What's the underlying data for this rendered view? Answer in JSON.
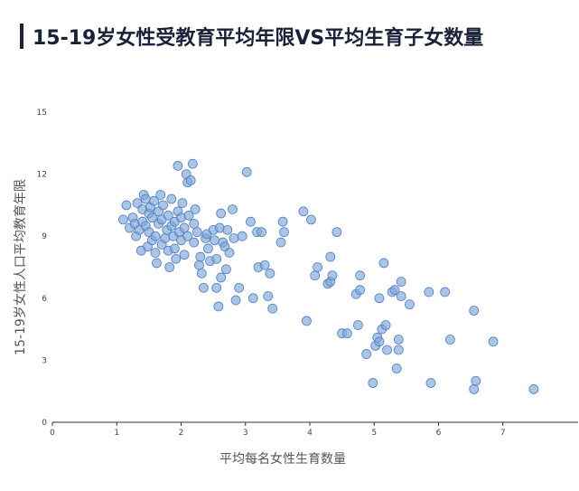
{
  "title": "15-19岁女性受教育平均年限VS平均生育子女数量",
  "chart_data": {
    "type": "scatter",
    "title": "15-19岁女性受教育平均年限VS平均生育子女数量",
    "xlabel": "平均每名女性生育数量",
    "ylabel": "15-19岁女性人口平均教育年限",
    "xlim": [
      0,
      8
    ],
    "ylim": [
      0,
      15
    ],
    "xticks": [
      0,
      1,
      2,
      3,
      4,
      5,
      6,
      7
    ],
    "yticks": [
      0,
      3,
      6,
      9,
      12,
      15
    ],
    "grid": false,
    "points": [
      [
        1.1,
        9.8
      ],
      [
        1.15,
        10.5
      ],
      [
        1.2,
        9.4
      ],
      [
        1.25,
        9.9
      ],
      [
        1.28,
        9.6
      ],
      [
        1.3,
        9.0
      ],
      [
        1.32,
        10.6
      ],
      [
        1.35,
        9.3
      ],
      [
        1.38,
        8.3
      ],
      [
        1.4,
        9.7
      ],
      [
        1.4,
        10.3
      ],
      [
        1.42,
        11.0
      ],
      [
        1.45,
        10.8
      ],
      [
        1.45,
        9.5
      ],
      [
        1.48,
        8.5
      ],
      [
        1.5,
        10.1
      ],
      [
        1.5,
        9.2
      ],
      [
        1.52,
        10.4
      ],
      [
        1.55,
        8.8
      ],
      [
        1.55,
        9.9
      ],
      [
        1.58,
        10.7
      ],
      [
        1.6,
        9.0
      ],
      [
        1.6,
        8.2
      ],
      [
        1.62,
        7.7
      ],
      [
        1.65,
        9.6
      ],
      [
        1.65,
        10.2
      ],
      [
        1.68,
        11.0
      ],
      [
        1.7,
        8.6
      ],
      [
        1.7,
        9.8
      ],
      [
        1.72,
        10.5
      ],
      [
        1.75,
        8.9
      ],
      [
        1.78,
        9.3
      ],
      [
        1.8,
        8.3
      ],
      [
        1.8,
        10.0
      ],
      [
        1.82,
        7.5
      ],
      [
        1.85,
        9.5
      ],
      [
        1.85,
        10.8
      ],
      [
        1.88,
        9.0
      ],
      [
        1.9,
        9.7
      ],
      [
        1.9,
        8.4
      ],
      [
        1.92,
        7.9
      ],
      [
        1.95,
        12.4
      ],
      [
        1.95,
        10.2
      ],
      [
        1.97,
        9.2
      ],
      [
        2.0,
        8.8
      ],
      [
        2.0,
        9.9
      ],
      [
        2.02,
        10.6
      ],
      [
        2.05,
        9.4
      ],
      [
        2.05,
        8.1
      ],
      [
        2.08,
        12.0
      ],
      [
        2.1,
        11.6
      ],
      [
        2.1,
        9.0
      ],
      [
        2.12,
        10.0
      ],
      [
        2.15,
        11.7
      ],
      [
        2.18,
        12.5
      ],
      [
        2.2,
        9.6
      ],
      [
        2.2,
        8.7
      ],
      [
        2.22,
        10.3
      ],
      [
        2.25,
        9.2
      ],
      [
        2.28,
        7.6
      ],
      [
        2.3,
        8.0
      ],
      [
        2.32,
        7.2
      ],
      [
        2.35,
        6.5
      ],
      [
        2.38,
        8.9
      ],
      [
        2.4,
        9.1
      ],
      [
        2.42,
        8.4
      ],
      [
        2.45,
        7.8
      ],
      [
        2.5,
        9.3
      ],
      [
        2.52,
        8.8
      ],
      [
        2.55,
        6.5
      ],
      [
        2.55,
        7.9
      ],
      [
        2.58,
        5.6
      ],
      [
        2.6,
        9.4
      ],
      [
        2.62,
        10.1
      ],
      [
        2.62,
        7.0
      ],
      [
        2.65,
        8.7
      ],
      [
        2.68,
        8.5
      ],
      [
        2.7,
        7.4
      ],
      [
        2.72,
        9.3
      ],
      [
        2.75,
        8.2
      ],
      [
        2.8,
        10.3
      ],
      [
        2.82,
        8.9
      ],
      [
        2.85,
        5.9
      ],
      [
        2.9,
        6.5
      ],
      [
        2.95,
        9.0
      ],
      [
        3.02,
        12.1
      ],
      [
        3.08,
        9.7
      ],
      [
        3.12,
        6.0
      ],
      [
        3.18,
        9.2
      ],
      [
        3.2,
        7.5
      ],
      [
        3.25,
        9.2
      ],
      [
        3.3,
        7.6
      ],
      [
        3.35,
        6.1
      ],
      [
        3.38,
        7.2
      ],
      [
        3.42,
        5.5
      ],
      [
        3.55,
        8.7
      ],
      [
        3.58,
        9.7
      ],
      [
        3.6,
        9.2
      ],
      [
        3.9,
        10.2
      ],
      [
        3.95,
        4.9
      ],
      [
        4.02,
        9.8
      ],
      [
        4.08,
        7.1
      ],
      [
        4.12,
        7.5
      ],
      [
        4.28,
        6.7
      ],
      [
        4.32,
        8.0
      ],
      [
        4.32,
        6.8
      ],
      [
        4.35,
        7.1
      ],
      [
        4.42,
        9.2
      ],
      [
        4.5,
        4.3
      ],
      [
        4.58,
        4.3
      ],
      [
        4.72,
        6.2
      ],
      [
        4.75,
        4.7
      ],
      [
        4.78,
        7.1
      ],
      [
        4.78,
        6.4
      ],
      [
        4.88,
        3.3
      ],
      [
        4.98,
        1.9
      ],
      [
        5.02,
        3.7
      ],
      [
        5.05,
        4.1
      ],
      [
        5.08,
        6.0
      ],
      [
        5.08,
        3.9
      ],
      [
        5.12,
        4.5
      ],
      [
        5.15,
        7.7
      ],
      [
        5.18,
        4.7
      ],
      [
        5.2,
        3.5
      ],
      [
        5.28,
        6.3
      ],
      [
        5.32,
        6.4
      ],
      [
        5.35,
        2.6
      ],
      [
        5.38,
        4.0
      ],
      [
        5.38,
        3.5
      ],
      [
        5.42,
        6.8
      ],
      [
        5.42,
        6.1
      ],
      [
        5.55,
        5.7
      ],
      [
        5.85,
        6.3
      ],
      [
        5.88,
        1.9
      ],
      [
        6.1,
        6.3
      ],
      [
        6.18,
        4.0
      ],
      [
        6.55,
        5.4
      ],
      [
        6.55,
        1.6
      ],
      [
        6.58,
        2.0
      ],
      [
        6.85,
        3.9
      ],
      [
        7.48,
        1.6
      ]
    ]
  }
}
